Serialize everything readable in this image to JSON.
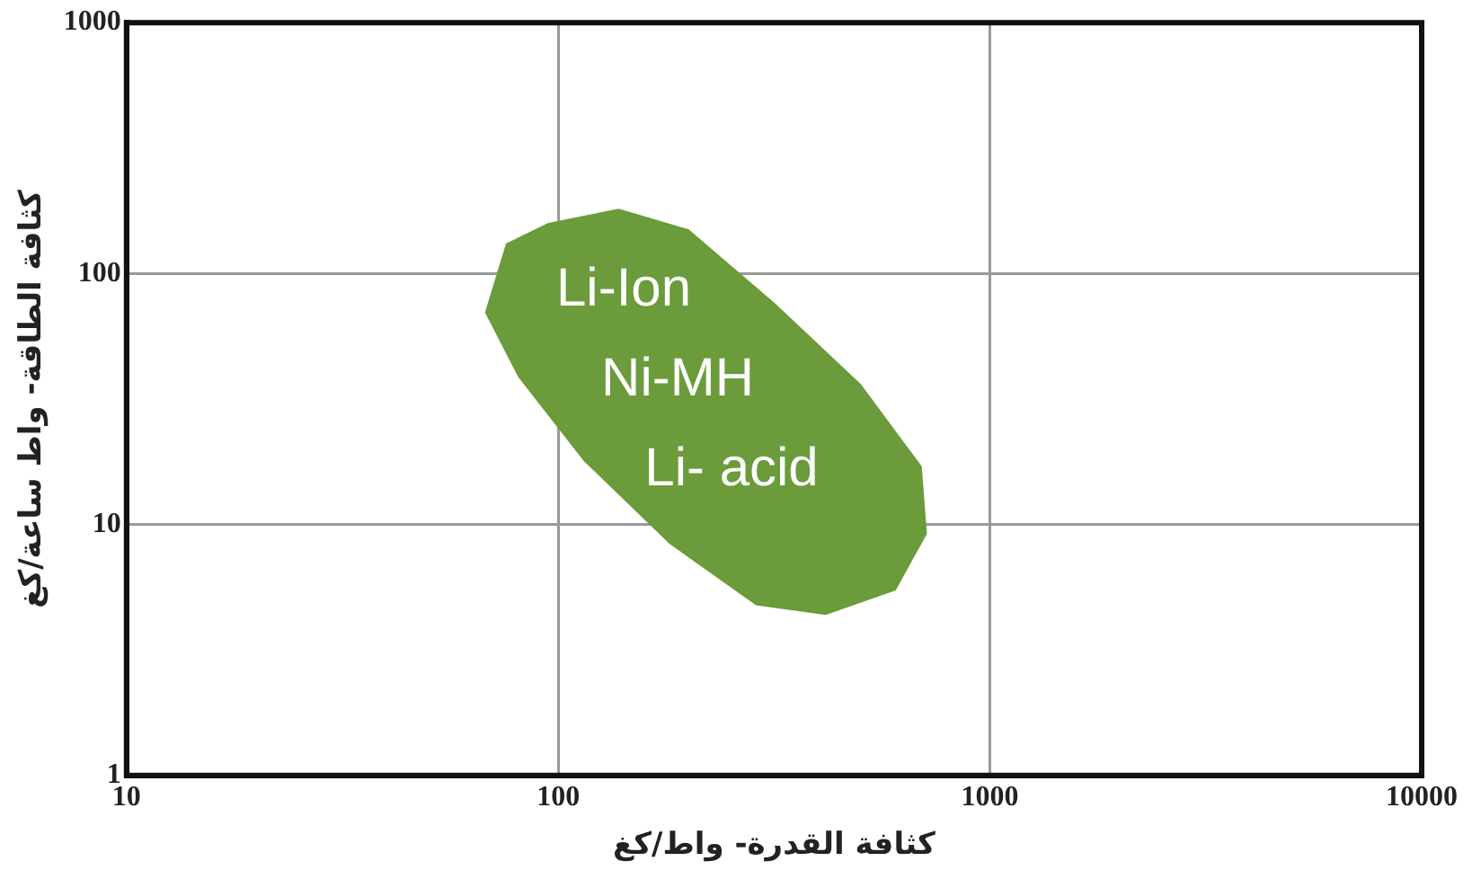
{
  "chart_data": {
    "type": "area",
    "xlabel": "كثافة القدرة- واط/كغ",
    "ylabel": "كثافة الطاقة- واط ساعة/كغ",
    "log": "xy",
    "grid": true,
    "legend": false,
    "marker": "none",
    "xlim": [
      10,
      10000
    ],
    "xticks": [
      10,
      100,
      1000,
      10000
    ],
    "ylim": [
      1,
      1000
    ],
    "yticks": [
      1,
      10,
      100,
      1000
    ],
    "series": [
      {
        "color": "#6b9b3a",
        "x": [
          95,
          138,
          200,
          316,
          501,
          692,
          711,
          603,
          417,
          288,
          182,
          115,
          81,
          68,
          76,
          95
        ],
        "values": [
          158,
          180,
          149,
          76,
          36,
          17,
          9.2,
          5.5,
          4.4,
          4.8,
          8.4,
          18,
          39,
          70,
          131,
          158
        ]
      }
    ],
    "annotations": [
      "Li-Ion",
      "Ni-MH",
      "Li- acid"
    ]
  }
}
